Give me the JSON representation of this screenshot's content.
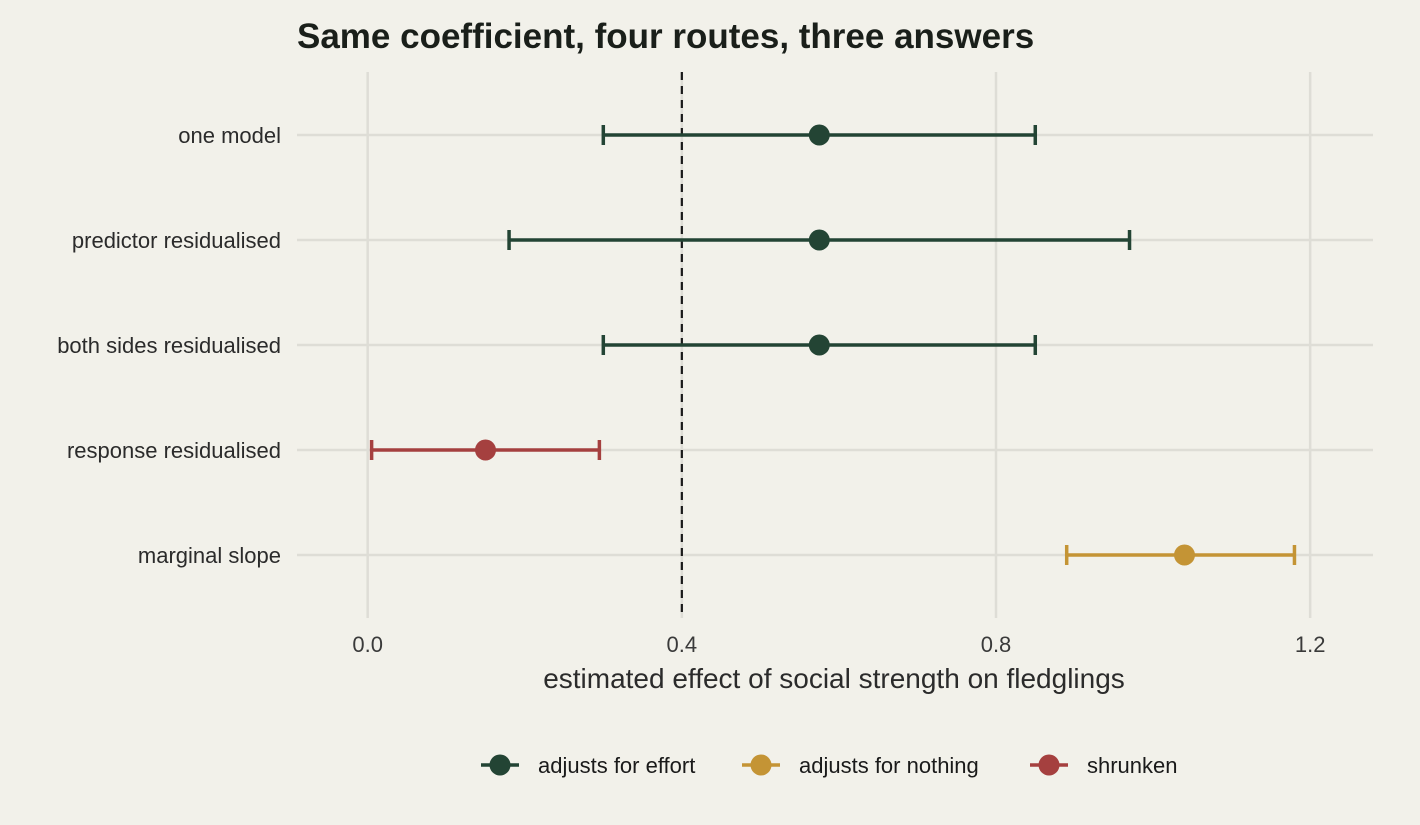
{
  "chart_data": {
    "type": "forest",
    "title": "Same coefficient, four routes, three answers",
    "xlabel": "estimated effect of social strength on fledglings",
    "ylabel": "",
    "xlim": [
      -0.09,
      1.28
    ],
    "xticks": [
      0.0,
      0.4,
      0.8,
      1.2
    ],
    "xtick_labels": [
      "0.0",
      "0.4",
      "0.8",
      "1.2"
    ],
    "reference_line": 0.4,
    "grid": true,
    "legend_position": "bottom",
    "colors": {
      "adjusts for effort": "#234434",
      "adjusts for nothing": "#c49435",
      "shrunken": "#a5403f"
    },
    "rows": [
      {
        "label": "one model",
        "estimate": 0.575,
        "lower": 0.3,
        "upper": 0.85,
        "group": "adjusts for effort"
      },
      {
        "label": "predictor residualised",
        "estimate": 0.575,
        "lower": 0.18,
        "upper": 0.97,
        "group": "adjusts for effort"
      },
      {
        "label": "both sides residualised",
        "estimate": 0.575,
        "lower": 0.3,
        "upper": 0.85,
        "group": "adjusts for effort"
      },
      {
        "label": "response residualised",
        "estimate": 0.15,
        "lower": 0.005,
        "upper": 0.295,
        "group": "shrunken"
      },
      {
        "label": "marginal slope",
        "estimate": 1.04,
        "lower": 0.89,
        "upper": 1.18,
        "group": "adjusts for nothing"
      }
    ],
    "legend": [
      "adjusts for effort",
      "adjusts for nothing",
      "shrunken"
    ]
  }
}
